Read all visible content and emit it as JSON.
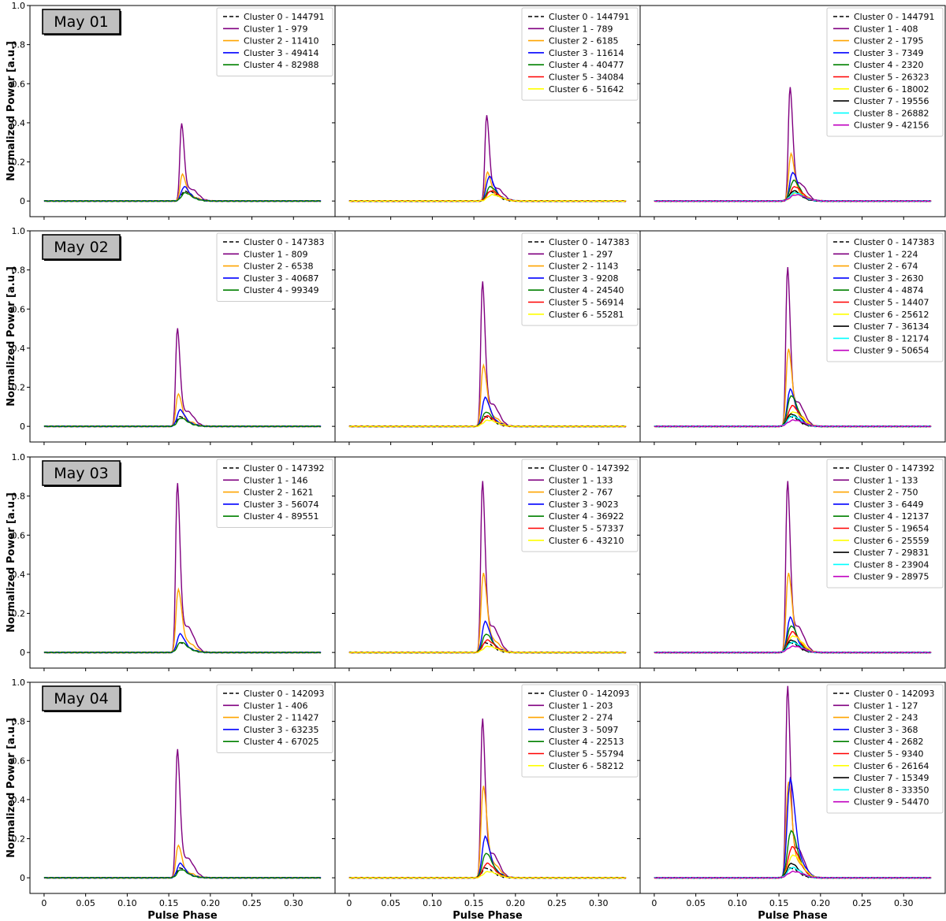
{
  "figure": {
    "xlabel": "Pulse Phase",
    "ylabel": "Normalized Power [a.u.]",
    "yticks": [
      "0",
      "0.2",
      "0.4",
      "0.6",
      "0.8",
      "1.0"
    ],
    "xticks": [
      "0",
      "0.05",
      "0.10",
      "0.15",
      "0.20",
      "0.25",
      "0.30"
    ],
    "days": [
      "May 01",
      "May 02",
      "May 03",
      "May 04"
    ]
  },
  "colors": {
    "cluster0": "#000000",
    "cluster1": "#800080",
    "cluster2": "#ffa500",
    "cluster3": "#0000ff",
    "cluster4": "#008000",
    "cluster5": "#ff0000",
    "cluster6": "#ffff00",
    "cluster7": "#000000",
    "cluster8": "#00ffff",
    "cluster9": "#c000c0"
  },
  "chart_data": [
    {
      "type": "line",
      "row": 0,
      "col": 0,
      "day_label": "May 01",
      "xlabel": "",
      "ylabel": "Normalized Power [a.u.]",
      "xlim": [
        -0.017,
        0.35
      ],
      "ylim": [
        -0.08,
        1.0
      ],
      "peak_phase": 0.165,
      "series": [
        {
          "name": "Cluster 0 - 144791",
          "peak": 0.05,
          "dashed": true
        },
        {
          "name": "Cluster 1 - 979",
          "peak": 0.38
        },
        {
          "name": "Cluster 2 - 11410",
          "peak": 0.13
        },
        {
          "name": "Cluster 3 - 49414",
          "peak": 0.07
        },
        {
          "name": "Cluster 4 - 82988",
          "peak": 0.04
        }
      ]
    },
    {
      "type": "line",
      "row": 0,
      "col": 1,
      "xlabel": "",
      "ylabel": "",
      "xlim": [
        -0.017,
        0.35
      ],
      "ylim": [
        -0.08,
        1.0
      ],
      "peak_phase": 0.165,
      "series": [
        {
          "name": "Cluster 0 - 144791",
          "peak": 0.05,
          "dashed": true
        },
        {
          "name": "Cluster 1 - 789",
          "peak": 0.42
        },
        {
          "name": "Cluster 2 - 6185",
          "peak": 0.14
        },
        {
          "name": "Cluster 3 - 11614",
          "peak": 0.12
        },
        {
          "name": "Cluster 4 - 40477",
          "peak": 0.07
        },
        {
          "name": "Cluster 5 - 34084",
          "peak": 0.05
        },
        {
          "name": "Cluster 6 - 51642",
          "peak": 0.03
        }
      ]
    },
    {
      "type": "line",
      "row": 0,
      "col": 2,
      "xlabel": "",
      "ylabel": "",
      "xlim": [
        -0.017,
        0.35
      ],
      "ylim": [
        -0.08,
        1.0
      ],
      "peak_phase": 0.163,
      "series": [
        {
          "name": "Cluster 0 - 144791",
          "peak": 0.05,
          "dashed": true
        },
        {
          "name": "Cluster 1 - 408",
          "peak": 0.56
        },
        {
          "name": "Cluster 2 - 1795",
          "peak": 0.23
        },
        {
          "name": "Cluster 3 - 7349",
          "peak": 0.14
        },
        {
          "name": "Cluster 4 - 2320",
          "peak": 0.1
        },
        {
          "name": "Cluster 5 - 26323",
          "peak": 0.07
        },
        {
          "name": "Cluster 6 - 18002",
          "peak": 0.04
        },
        {
          "name": "Cluster 7 - 19556",
          "peak": 0.05
        },
        {
          "name": "Cluster 8 - 26882",
          "peak": 0.04
        },
        {
          "name": "Cluster 9 - 42156",
          "peak": 0.03
        }
      ]
    },
    {
      "type": "line",
      "row": 1,
      "col": 0,
      "day_label": "May 02",
      "xlabel": "",
      "ylabel": "Normalized Power [a.u.]",
      "xlim": [
        -0.017,
        0.35
      ],
      "ylim": [
        -0.08,
        1.0
      ],
      "peak_phase": 0.16,
      "series": [
        {
          "name": "Cluster 0 - 147383",
          "peak": 0.05,
          "dashed": true
        },
        {
          "name": "Cluster 1 - 809",
          "peak": 0.48
        },
        {
          "name": "Cluster 2 - 6538",
          "peak": 0.16
        },
        {
          "name": "Cluster 3 - 40687",
          "peak": 0.08
        },
        {
          "name": "Cluster 4 - 99349",
          "peak": 0.04
        }
      ]
    },
    {
      "type": "line",
      "row": 1,
      "col": 1,
      "xlabel": "",
      "ylabel": "",
      "xlim": [
        -0.017,
        0.35
      ],
      "ylim": [
        -0.08,
        1.0
      ],
      "peak_phase": 0.16,
      "series": [
        {
          "name": "Cluster 0 - 147383",
          "peak": 0.05,
          "dashed": true
        },
        {
          "name": "Cluster 1 - 297",
          "peak": 0.71
        },
        {
          "name": "Cluster 2 - 1143",
          "peak": 0.3
        },
        {
          "name": "Cluster 3 - 9208",
          "peak": 0.14
        },
        {
          "name": "Cluster 4 - 24540",
          "peak": 0.07
        },
        {
          "name": "Cluster 5 - 56914",
          "peak": 0.05
        },
        {
          "name": "Cluster 6 - 55281",
          "peak": 0.03
        }
      ]
    },
    {
      "type": "line",
      "row": 1,
      "col": 2,
      "xlabel": "",
      "ylabel": "",
      "xlim": [
        -0.017,
        0.35
      ],
      "ylim": [
        -0.08,
        1.0
      ],
      "peak_phase": 0.16,
      "series": [
        {
          "name": "Cluster 0 - 147383",
          "peak": 0.05,
          "dashed": true
        },
        {
          "name": "Cluster 1 - 224",
          "peak": 0.78
        },
        {
          "name": "Cluster 2 - 674",
          "peak": 0.38
        },
        {
          "name": "Cluster 3 - 2630",
          "peak": 0.18
        },
        {
          "name": "Cluster 4 - 4874",
          "peak": 0.15
        },
        {
          "name": "Cluster 5 - 14407",
          "peak": 0.1
        },
        {
          "name": "Cluster 6 - 25612",
          "peak": 0.07
        },
        {
          "name": "Cluster 7 - 36134",
          "peak": 0.06
        },
        {
          "name": "Cluster 8 - 12174",
          "peak": 0.05
        },
        {
          "name": "Cluster 9 - 50654",
          "peak": 0.03
        }
      ]
    },
    {
      "type": "line",
      "row": 2,
      "col": 0,
      "day_label": "May 03",
      "xlabel": "",
      "ylabel": "Normalized Power [a.u.]",
      "xlim": [
        -0.017,
        0.35
      ],
      "ylim": [
        -0.08,
        1.0
      ],
      "peak_phase": 0.16,
      "series": [
        {
          "name": "Cluster 0 - 147392",
          "peak": 0.05,
          "dashed": true
        },
        {
          "name": "Cluster 1 - 146",
          "peak": 0.83
        },
        {
          "name": "Cluster 2 - 1621",
          "peak": 0.31
        },
        {
          "name": "Cluster 3 - 56074",
          "peak": 0.09
        },
        {
          "name": "Cluster 4 - 89551",
          "peak": 0.05
        }
      ]
    },
    {
      "type": "line",
      "row": 2,
      "col": 1,
      "xlabel": "",
      "ylabel": "",
      "xlim": [
        -0.017,
        0.35
      ],
      "ylim": [
        -0.08,
        1.0
      ],
      "peak_phase": 0.16,
      "series": [
        {
          "name": "Cluster 0 - 147392",
          "peak": 0.05,
          "dashed": true
        },
        {
          "name": "Cluster 1 - 133",
          "peak": 0.84
        },
        {
          "name": "Cluster 2 - 767",
          "peak": 0.39
        },
        {
          "name": "Cluster 3 - 9023",
          "peak": 0.15
        },
        {
          "name": "Cluster 4 - 36922",
          "peak": 0.09
        },
        {
          "name": "Cluster 5 - 57337",
          "peak": 0.06
        },
        {
          "name": "Cluster 6 - 43210",
          "peak": 0.03
        }
      ]
    },
    {
      "type": "line",
      "row": 2,
      "col": 2,
      "xlabel": "",
      "ylabel": "",
      "xlim": [
        -0.017,
        0.35
      ],
      "ylim": [
        -0.08,
        1.0
      ],
      "peak_phase": 0.16,
      "series": [
        {
          "name": "Cluster 0 - 147392",
          "peak": 0.05,
          "dashed": true
        },
        {
          "name": "Cluster 1 - 133",
          "peak": 0.84
        },
        {
          "name": "Cluster 2 - 750",
          "peak": 0.39
        },
        {
          "name": "Cluster 3 - 6449",
          "peak": 0.17
        },
        {
          "name": "Cluster 4 - 12137",
          "peak": 0.13
        },
        {
          "name": "Cluster 5 - 19654",
          "peak": 0.1
        },
        {
          "name": "Cluster 6 - 25559",
          "peak": 0.08
        },
        {
          "name": "Cluster 7 - 29831",
          "peak": 0.06
        },
        {
          "name": "Cluster 8 - 23904",
          "peak": 0.05
        },
        {
          "name": "Cluster 9 - 28975",
          "peak": 0.03
        }
      ]
    },
    {
      "type": "line",
      "row": 3,
      "col": 0,
      "day_label": "May 04",
      "xlabel": "Pulse Phase",
      "ylabel": "Normalized Power [a.u.]",
      "xlim": [
        -0.017,
        0.35
      ],
      "ylim": [
        -0.08,
        1.0
      ],
      "peak_phase": 0.16,
      "series": [
        {
          "name": "Cluster 0 - 142093",
          "peak": 0.05,
          "dashed": true
        },
        {
          "name": "Cluster 1 - 406",
          "peak": 0.63
        },
        {
          "name": "Cluster 2 - 11427",
          "peak": 0.16
        },
        {
          "name": "Cluster 3 - 63235",
          "peak": 0.07
        },
        {
          "name": "Cluster 4 - 67025",
          "peak": 0.04
        }
      ]
    },
    {
      "type": "line",
      "row": 3,
      "col": 1,
      "xlabel": "Pulse Phase",
      "ylabel": "",
      "xlim": [
        -0.017,
        0.35
      ],
      "ylim": [
        -0.08,
        1.0
      ],
      "peak_phase": 0.16,
      "series": [
        {
          "name": "Cluster 0 - 142093",
          "peak": 0.05,
          "dashed": true
        },
        {
          "name": "Cluster 1 - 203",
          "peak": 0.78
        },
        {
          "name": "Cluster 2 - 274",
          "peak": 0.45
        },
        {
          "name": "Cluster 3 - 5097",
          "peak": 0.2
        },
        {
          "name": "Cluster 4 - 22513",
          "peak": 0.12
        },
        {
          "name": "Cluster 5 - 55794",
          "peak": 0.07
        },
        {
          "name": "Cluster 6 - 58212",
          "peak": 0.03
        }
      ]
    },
    {
      "type": "line",
      "row": 3,
      "col": 2,
      "xlabel": "Pulse Phase",
      "ylabel": "",
      "xlim": [
        -0.017,
        0.35
      ],
      "ylim": [
        -0.08,
        1.0
      ],
      "peak_phase": 0.16,
      "series": [
        {
          "name": "Cluster 0 - 142093",
          "peak": 0.05,
          "dashed": true
        },
        {
          "name": "Cluster 1 - 127",
          "peak": 0.94
        },
        {
          "name": "Cluster 2 - 243",
          "peak": 0.47
        },
        {
          "name": "Cluster 3 - 368",
          "peak": 0.48
        },
        {
          "name": "Cluster 4 - 2682",
          "peak": 0.23
        },
        {
          "name": "Cluster 5 - 9340",
          "peak": 0.15
        },
        {
          "name": "Cluster 6 - 26164",
          "peak": 0.11
        },
        {
          "name": "Cluster 7 - 15349",
          "peak": 0.07
        },
        {
          "name": "Cluster 8 - 33350",
          "peak": 0.05
        },
        {
          "name": "Cluster 9 - 54470",
          "peak": 0.03
        }
      ]
    }
  ]
}
